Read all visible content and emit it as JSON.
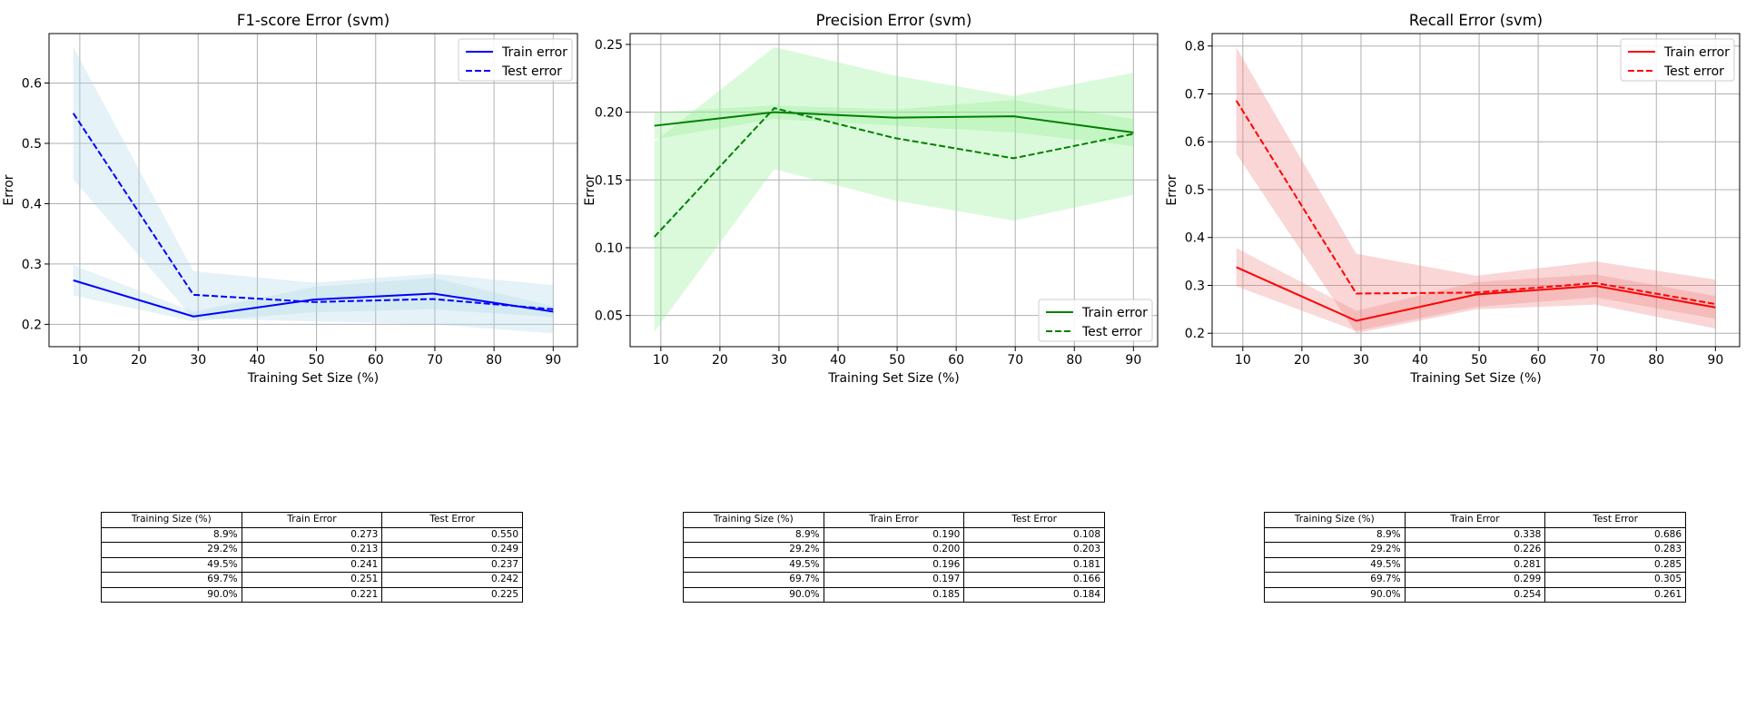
{
  "chart_data": [
    {
      "type": "line",
      "title": "F1-score Error (svm)",
      "xlabel": "Training Set Size (%)",
      "ylabel": "Error",
      "xlim": [
        4.8,
        94.1
      ],
      "ylim": [
        0.163,
        0.682
      ],
      "xticks": [
        10,
        20,
        30,
        40,
        50,
        60,
        70,
        80,
        90
      ],
      "yticks": [
        0.2,
        0.3,
        0.4,
        0.5,
        0.6
      ],
      "ytick_labels": [
        "0.2",
        "0.3",
        "0.4",
        "0.5",
        "0.6"
      ],
      "grid": true,
      "legend_position": "top-right",
      "color": "#0000ff",
      "band_color": "#add8e6",
      "x": [
        8.9,
        29.2,
        49.5,
        69.7,
        90.0
      ],
      "series": [
        {
          "name": "Train error",
          "style": "solid",
          "values": [
            0.273,
            0.213,
            0.241,
            0.251,
            0.221
          ],
          "band_lower": [
            0.248,
            0.205,
            0.22,
            0.225,
            0.212
          ],
          "band_upper": [
            0.298,
            0.221,
            0.262,
            0.277,
            0.23
          ]
        },
        {
          "name": "Test error",
          "style": "dashed",
          "values": [
            0.55,
            0.249,
            0.237,
            0.242,
            0.225
          ],
          "band_lower": [
            0.44,
            0.21,
            0.205,
            0.2,
            0.185
          ],
          "band_upper": [
            0.66,
            0.288,
            0.269,
            0.284,
            0.265
          ]
        }
      ]
    },
    {
      "type": "line",
      "title": "Precision Error (svm)",
      "xlabel": "Training Set Size (%)",
      "ylabel": "Error",
      "xlim": [
        4.8,
        94.1
      ],
      "ylim": [
        0.027,
        0.258
      ],
      "xticks": [
        10,
        20,
        30,
        40,
        50,
        60,
        70,
        80,
        90
      ],
      "yticks": [
        0.05,
        0.1,
        0.15,
        0.2,
        0.25
      ],
      "ytick_labels": [
        "0.05",
        "0.10",
        "0.15",
        "0.20",
        "0.25"
      ],
      "grid": true,
      "legend_position": "bottom-right",
      "color": "#008000",
      "band_color": "#90ee90",
      "x": [
        8.9,
        29.2,
        49.5,
        69.7,
        90.0
      ],
      "series": [
        {
          "name": "Train error",
          "style": "solid",
          "values": [
            0.19,
            0.2,
            0.196,
            0.197,
            0.185
          ],
          "band_lower": [
            0.18,
            0.195,
            0.19,
            0.185,
            0.175
          ],
          "band_upper": [
            0.2,
            0.205,
            0.202,
            0.209,
            0.195
          ]
        },
        {
          "name": "Test error",
          "style": "dashed",
          "values": [
            0.108,
            0.203,
            0.181,
            0.166,
            0.184
          ],
          "band_lower": [
            0.038,
            0.158,
            0.135,
            0.12,
            0.139
          ],
          "band_upper": [
            0.178,
            0.248,
            0.227,
            0.212,
            0.229
          ]
        }
      ]
    },
    {
      "type": "line",
      "title": "Recall Error (svm)",
      "xlabel": "Training Set Size (%)",
      "ylabel": "Error",
      "xlim": [
        4.8,
        94.1
      ],
      "ylim": [
        0.172,
        0.826
      ],
      "xticks": [
        10,
        20,
        30,
        40,
        50,
        60,
        70,
        80,
        90
      ],
      "yticks": [
        0.2,
        0.3,
        0.4,
        0.5,
        0.6,
        0.7,
        0.8
      ],
      "ytick_labels": [
        "0.2",
        "0.3",
        "0.4",
        "0.5",
        "0.6",
        "0.7",
        "0.8"
      ],
      "grid": true,
      "legend_position": "top-right",
      "color": "#ff0000",
      "band_color": "#f08080",
      "x": [
        8.9,
        29.2,
        49.5,
        69.7,
        90.0
      ],
      "series": [
        {
          "name": "Train error",
          "style": "solid",
          "values": [
            0.338,
            0.226,
            0.281,
            0.299,
            0.254
          ],
          "band_lower": [
            0.298,
            0.205,
            0.255,
            0.275,
            0.23
          ],
          "band_upper": [
            0.378,
            0.247,
            0.307,
            0.323,
            0.278
          ]
        },
        {
          "name": "Test error",
          "style": "dashed",
          "values": [
            0.686,
            0.283,
            0.285,
            0.305,
            0.261
          ],
          "band_lower": [
            0.575,
            0.2,
            0.25,
            0.26,
            0.21
          ],
          "band_upper": [
            0.797,
            0.366,
            0.32,
            0.35,
            0.312
          ]
        }
      ]
    }
  ],
  "tables": [
    {
      "headers": [
        "Training Size (%)",
        "Train Error",
        "Test Error"
      ],
      "rows": [
        [
          "8.9%",
          "0.273",
          "0.550"
        ],
        [
          "29.2%",
          "0.213",
          "0.249"
        ],
        [
          "49.5%",
          "0.241",
          "0.237"
        ],
        [
          "69.7%",
          "0.251",
          "0.242"
        ],
        [
          "90.0%",
          "0.221",
          "0.225"
        ]
      ]
    },
    {
      "headers": [
        "Training Size (%)",
        "Train Error",
        "Test Error"
      ],
      "rows": [
        [
          "8.9%",
          "0.190",
          "0.108"
        ],
        [
          "29.2%",
          "0.200",
          "0.203"
        ],
        [
          "49.5%",
          "0.196",
          "0.181"
        ],
        [
          "69.7%",
          "0.197",
          "0.166"
        ],
        [
          "90.0%",
          "0.185",
          "0.184"
        ]
      ]
    },
    {
      "headers": [
        "Training Size (%)",
        "Train Error",
        "Test Error"
      ],
      "rows": [
        [
          "8.9%",
          "0.338",
          "0.686"
        ],
        [
          "29.2%",
          "0.226",
          "0.283"
        ],
        [
          "49.5%",
          "0.281",
          "0.285"
        ],
        [
          "69.7%",
          "0.299",
          "0.305"
        ],
        [
          "90.0%",
          "0.254",
          "0.261"
        ]
      ]
    }
  ]
}
